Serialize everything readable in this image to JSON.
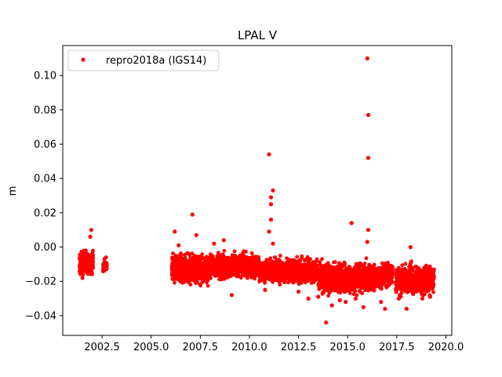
{
  "chart_data": {
    "type": "scatter",
    "title": "LPAL V",
    "xlabel": "",
    "ylabel": "m",
    "xlim": [
      2000.5,
      2020.3
    ],
    "ylim": [
      -0.0515,
      0.1175
    ],
    "x_ticks": [
      2002.5,
      2005.0,
      2007.5,
      2010.0,
      2012.5,
      2015.0,
      2017.5,
      2020.0
    ],
    "x_tick_labels": [
      "2002.5",
      "2005.0",
      "2007.5",
      "2010.0",
      "2012.5",
      "2015.0",
      "2017.5",
      "2020.0"
    ],
    "y_ticks": [
      -0.04,
      -0.02,
      0.0,
      0.02,
      0.04,
      0.06,
      0.08,
      0.1
    ],
    "y_tick_labels": [
      "−0.04",
      "−0.02",
      "0.00",
      "0.02",
      "0.04",
      "0.06",
      "0.08",
      "0.10"
    ],
    "grid": false,
    "legend_position": "top-left",
    "series": [
      {
        "name": "repro2018a (IGS14)",
        "color": "#ff0000",
        "marker": "circle",
        "segments": [
          {
            "x_start": 2001.35,
            "x_end": 2002.05,
            "center": -0.009,
            "spread": 0.004
          },
          {
            "x_start": 2002.55,
            "x_end": 2002.75,
            "center": -0.011,
            "spread": 0.002
          },
          {
            "x_start": 2006.05,
            "x_end": 2008.0,
            "center": -0.013,
            "spread": 0.005
          },
          {
            "x_start": 2008.0,
            "x_end": 2010.5,
            "center": -0.011,
            "spread": 0.004
          },
          {
            "x_start": 2010.5,
            "x_end": 2013.5,
            "center": -0.014,
            "spread": 0.004
          },
          {
            "x_start": 2013.5,
            "x_end": 2016.8,
            "center": -0.018,
            "spread": 0.005
          },
          {
            "x_start": 2016.8,
            "x_end": 2017.3,
            "center": -0.016,
            "spread": 0.004
          },
          {
            "x_start": 2017.45,
            "x_end": 2019.4,
            "center": -0.019,
            "spread": 0.005
          }
        ],
        "outliers": [
          [
            2001.95,
            0.01
          ],
          [
            2001.9,
            0.006
          ],
          [
            2001.5,
            -0.018
          ],
          [
            2002.7,
            -0.006
          ],
          [
            2006.2,
            0.009
          ],
          [
            2006.4,
            0.001
          ],
          [
            2007.1,
            0.019
          ],
          [
            2007.3,
            0.007
          ],
          [
            2008.2,
            0.002
          ],
          [
            2008.7,
            0.004
          ],
          [
            2009.1,
            -0.028
          ],
          [
            2011.0,
            0.054
          ],
          [
            2011.2,
            0.033
          ],
          [
            2011.1,
            0.029
          ],
          [
            2011.1,
            0.025
          ],
          [
            2011.1,
            0.016
          ],
          [
            2011.0,
            0.009
          ],
          [
            2011.2,
            0.002
          ],
          [
            2011.3,
            -0.006
          ],
          [
            2010.8,
            -0.025
          ],
          [
            2012.5,
            -0.026
          ],
          [
            2013.0,
            -0.03
          ],
          [
            2013.5,
            -0.029
          ],
          [
            2013.9,
            -0.044
          ],
          [
            2014.2,
            -0.034
          ],
          [
            2014.6,
            -0.031
          ],
          [
            2014.9,
            -0.032
          ],
          [
            2015.2,
            0.014
          ],
          [
            2015.4,
            -0.03
          ],
          [
            2016.0,
            0.11
          ],
          [
            2016.05,
            0.077
          ],
          [
            2016.05,
            0.052
          ],
          [
            2016.05,
            0.01
          ],
          [
            2016.0,
            0.003
          ],
          [
            2015.8,
            -0.035
          ],
          [
            2016.7,
            -0.032
          ],
          [
            2016.9,
            -0.036
          ],
          [
            2017.6,
            -0.03
          ],
          [
            2018.0,
            -0.036
          ],
          [
            2018.2,
            0.0
          ],
          [
            2018.8,
            -0.03
          ],
          [
            2019.2,
            -0.029
          ]
        ]
      }
    ]
  }
}
